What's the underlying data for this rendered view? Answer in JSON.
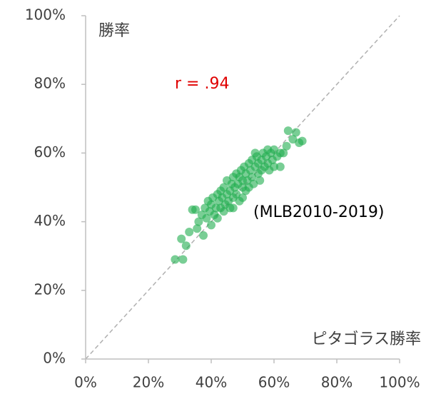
{
  "chart_data": {
    "type": "scatter",
    "y_label": "勝率",
    "x_label": "ピタゴラス勝率",
    "annotations": [
      "r = .94",
      "(MLB2010-2019)"
    ],
    "annotation_color": "#e00000",
    "color": "#1fae4f",
    "xlim": [
      0,
      100
    ],
    "ylim": [
      0,
      100
    ],
    "xticks": [
      {
        "value": 0,
        "label": "0%"
      },
      {
        "value": 20,
        "label": "20%"
      },
      {
        "value": 40,
        "label": "40%"
      },
      {
        "value": 60,
        "label": "60%"
      },
      {
        "value": 80,
        "label": "80%"
      },
      {
        "value": 100,
        "label": "100%"
      }
    ],
    "yticks": [
      {
        "value": 0,
        "label": "0%"
      },
      {
        "value": 20,
        "label": "20%"
      },
      {
        "value": 40,
        "label": "40%"
      },
      {
        "value": 60,
        "label": "60%"
      },
      {
        "value": 80,
        "label": "80%"
      },
      {
        "value": 100,
        "label": "100%"
      }
    ],
    "x": [
      28.5,
      31,
      30.5,
      32,
      33,
      34,
      35,
      35.5,
      36,
      37,
      37.5,
      38,
      38.5,
      39,
      39.5,
      40,
      40,
      40.5,
      41,
      41.5,
      42,
      42,
      42.5,
      43,
      43,
      43.5,
      44,
      44,
      44.5,
      45,
      45,
      45.5,
      46,
      46,
      46.5,
      47,
      47,
      47.5,
      48,
      48,
      48.5,
      49,
      49,
      49.5,
      50,
      50,
      50.5,
      51,
      51,
      51.5,
      52,
      52,
      52.5,
      53,
      53,
      53.5,
      54,
      54.5,
      55,
      55,
      55.5,
      56,
      56,
      56.5,
      57,
      57.5,
      58,
      58,
      58.5,
      59,
      59.5,
      60,
      60,
      61,
      62,
      62,
      63,
      64,
      64.5,
      66,
      67,
      68,
      69,
      50,
      54,
      47
    ],
    "values": [
      29,
      29,
      35,
      33,
      37,
      43.5,
      43.5,
      38,
      40,
      42,
      36,
      44,
      41,
      46,
      43,
      39,
      45,
      47,
      42,
      44,
      48,
      41,
      46,
      44,
      49,
      47,
      43,
      50,
      45,
      48,
      52,
      46,
      49,
      44,
      51,
      47,
      53,
      50,
      48,
      54,
      51,
      46,
      53,
      55,
      50,
      52,
      56,
      49,
      54,
      52,
      57,
      50,
      55,
      53,
      58,
      51,
      56,
      59,
      54,
      57,
      52,
      58,
      55,
      60,
      56,
      59,
      57,
      61,
      55,
      60,
      58,
      61,
      56,
      59,
      60,
      56,
      60,
      62,
      66.5,
      64,
      66,
      63,
      63.5,
      47,
      60,
      44
    ]
  }
}
